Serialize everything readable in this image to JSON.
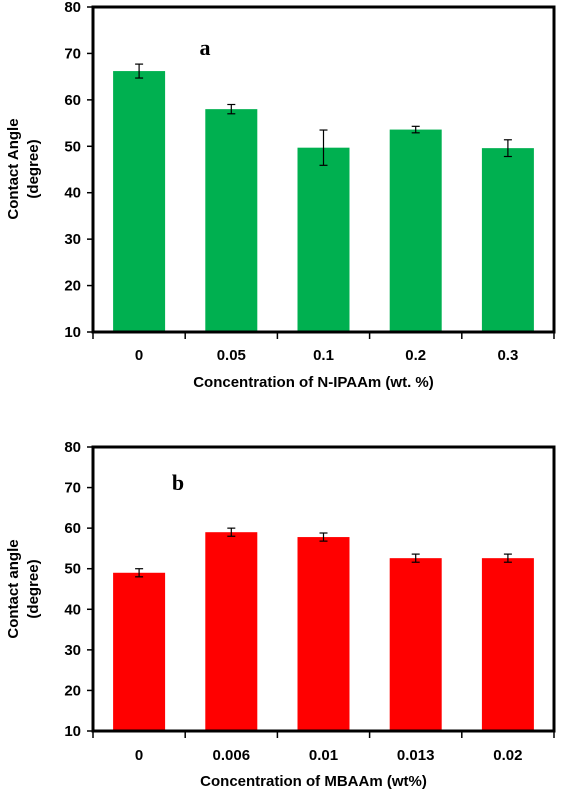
{
  "chart_data": [
    {
      "type": "bar",
      "panel_label": "a",
      "categories": [
        "0",
        "0.05",
        "0.1",
        "0.2",
        "0.3"
      ],
      "values": [
        66.2,
        58.0,
        49.7,
        53.6,
        49.6
      ],
      "errors": [
        1.5,
        1.0,
        3.8,
        0.7,
        1.8
      ],
      "bar_color": "#00b050",
      "xlabel": "Concentration of N-IPAAm (wt. %)",
      "ylabel": [
        "Contact Angle",
        "(degree)"
      ],
      "ylim": [
        10,
        80
      ],
      "yticks": [
        10,
        20,
        30,
        40,
        50,
        60,
        70,
        80
      ],
      "grid": false
    },
    {
      "type": "bar",
      "panel_label": "b",
      "categories": [
        "0",
        "0.006",
        "0.01",
        "0.013",
        "0.02"
      ],
      "values": [
        49.0,
        59.0,
        57.8,
        52.6,
        52.6
      ],
      "errors": [
        1.0,
        1.0,
        1.0,
        1.0,
        1.0
      ],
      "bar_color": "#ff0000",
      "xlabel": "Concentration of MBAAm (wt%)",
      "ylabel": [
        "Contact angle",
        "(degree)"
      ],
      "ylim": [
        10,
        80
      ],
      "yticks": [
        10,
        20,
        30,
        40,
        50,
        60,
        70,
        80
      ],
      "grid": false
    }
  ]
}
